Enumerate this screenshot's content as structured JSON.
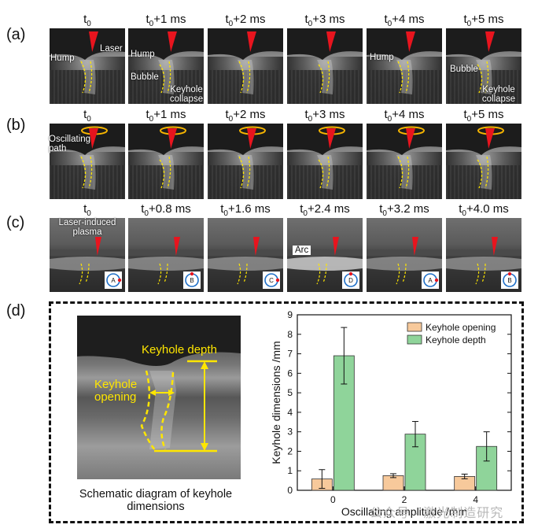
{
  "panels": {
    "a": "(a)",
    "b": "(b)",
    "c": "(c)",
    "d": "(d)"
  },
  "row_a": {
    "times": [
      "t0",
      "t0+1 ms",
      "t0+2 ms",
      "t0+3 ms",
      "t0+4 ms",
      "t0+5 ms"
    ],
    "notes": {
      "laser": "Laser",
      "hump1": "Hump",
      "hump2": "Hump",
      "bubble2": "Bubble",
      "collapse2": "Keyhole collapse",
      "hump5": "Hump",
      "bubble6": "Bubble",
      "collapse6": "Keyhole collapse"
    }
  },
  "row_b": {
    "times": [
      "t0",
      "t0+1 ms",
      "t0+2 ms",
      "t0+3 ms",
      "t0+4 ms",
      "t0+5 ms"
    ],
    "notes": {
      "path": "Oscillating path"
    }
  },
  "row_c": {
    "times": [
      "t0",
      "t0+0.8 ms",
      "t0+1.6 ms",
      "t0+2.4 ms",
      "t0+3.2 ms",
      "t0+4.0 ms"
    ],
    "notes": {
      "plasma": "Laser-induced plasma",
      "arc": "Arc"
    },
    "positions": [
      "A",
      "B",
      "C",
      "D",
      "A",
      "B"
    ]
  },
  "schematic": {
    "depth_label": "Keyhole depth",
    "opening_label": "Keyhole opening",
    "caption": "Schematic diagram of keyhole dimensions"
  },
  "colors": {
    "laser": "#e8141e",
    "annotation": "#ffe600",
    "opening": "#f7c99b",
    "depth": "#8fd49a",
    "circle": "#1f6fc7"
  },
  "chart_data": {
    "type": "bar",
    "categories": [
      "0",
      "2",
      "4"
    ],
    "series": [
      {
        "name": "Keyhole opening",
        "values": [
          0.58,
          0.75,
          0.71
        ],
        "errors": [
          0.48,
          0.1,
          0.12
        ]
      },
      {
        "name": "Keyhole depth",
        "values": [
          6.9,
          2.88,
          2.25
        ],
        "errors": [
          1.45,
          0.65,
          0.75
        ]
      }
    ],
    "xlabel": "Oscillating amplitude /mm",
    "ylabel": "Keyhole dimensions /mm",
    "ylim": [
      0,
      9
    ],
    "yticks": [
      "0",
      "1",
      "2",
      "3",
      "4",
      "5",
      "6",
      "7",
      "8",
      "9"
    ],
    "legend": "top-right"
  },
  "watermark": "公众号 · 激光制造研究"
}
